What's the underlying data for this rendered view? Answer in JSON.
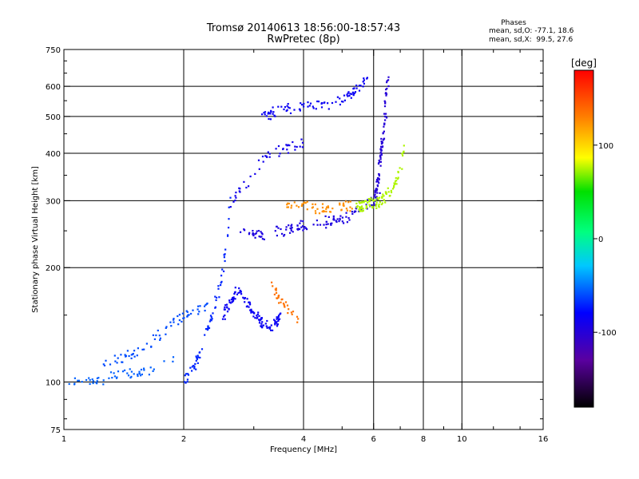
{
  "chart_data": {
    "type": "scatter",
    "title": "Tromsø 20140613 18:56:00-18:57:43",
    "subtitle": "RwPretec (8p)",
    "xlabel": "Frequency [MHz]",
    "ylabel": "Stationary phase Virtual Height [km]",
    "x_scale": "log",
    "y_scale": "log",
    "xlim": [
      1,
      16
    ],
    "ylim": [
      75,
      750
    ],
    "x_ticks": [
      1,
      2,
      4,
      6,
      8,
      10,
      16
    ],
    "x_tick_labels": [
      "1",
      "2",
      "4",
      "6",
      "8",
      "10",
      "16"
    ],
    "y_ticks": [
      75,
      100,
      200,
      300,
      400,
      500,
      600,
      750
    ],
    "y_tick_labels": [
      "75",
      "100",
      "200",
      "300",
      "400",
      "500",
      "600",
      "750"
    ],
    "grid": true,
    "phase_info": {
      "header": "Phases",
      "line_o": "mean, sd,O: -77.1, 18.6",
      "line_x": "mean, sd,X:  99.5, 27.6"
    },
    "colorbar": {
      "label": "[deg]",
      "range": [
        -180,
        180
      ],
      "ticks": [
        100,
        0,
        -100
      ],
      "tick_labels": [
        "100",
        "0",
        "-100"
      ]
    },
    "series": [
      {
        "x_range": [
          1.0,
          1.9
        ],
        "y_start": 100,
        "y_end": 118,
        "phase": -55,
        "count": 55,
        "points": [
          [
            1.0,
            100
          ],
          [
            1.05,
            101
          ],
          [
            1.12,
            102
          ],
          [
            1.2,
            101
          ],
          [
            1.3,
            103
          ],
          [
            1.4,
            105
          ],
          [
            1.5,
            106
          ],
          [
            1.6,
            107
          ],
          [
            1.7,
            110
          ],
          [
            1.8,
            114
          ],
          [
            1.9,
            118
          ]
        ]
      },
      {
        "x_range": [
          1.25,
          2.3
        ],
        "y_start": 112,
        "y_end": 160,
        "phase": -60,
        "count": 70,
        "points": [
          [
            1.25,
            112
          ],
          [
            1.4,
            117
          ],
          [
            1.55,
            122
          ],
          [
            1.7,
            132
          ],
          [
            1.9,
            145
          ],
          [
            2.05,
            152
          ],
          [
            2.2,
            158
          ],
          [
            2.3,
            160
          ]
        ]
      },
      {
        "x_range": [
          2.0,
          2.6
        ],
        "y_start": 100,
        "y_end": 310,
        "phase": -70,
        "count": 70,
        "points": [
          [
            2.0,
            100
          ],
          [
            2.15,
            115
          ],
          [
            2.3,
            140
          ],
          [
            2.45,
            180
          ],
          [
            2.55,
            230
          ],
          [
            2.6,
            310
          ]
        ]
      },
      {
        "x_range": [
          2.4,
          3.5
        ],
        "y_start": 135,
        "y_end": 215,
        "phase": -85,
        "count": 120,
        "points": [
          [
            2.5,
            150
          ],
          [
            2.7,
            175
          ],
          [
            2.9,
            160
          ],
          [
            3.1,
            145
          ],
          [
            3.3,
            140
          ],
          [
            3.5,
            150
          ]
        ]
      },
      {
        "x_range": [
          2.7,
          6.2
        ],
        "y_start": 245,
        "y_end": 310,
        "phase": -95,
        "count": 120,
        "points": [
          [
            2.7,
            250
          ],
          [
            3.0,
            245
          ],
          [
            3.5,
            250
          ],
          [
            4.0,
            260
          ],
          [
            4.5,
            265
          ],
          [
            5.0,
            272
          ],
          [
            5.5,
            285
          ],
          [
            5.9,
            300
          ],
          [
            6.2,
            312
          ]
        ]
      },
      {
        "x_range": [
          6.0,
          6.5
        ],
        "y_start": 300,
        "y_end": 650,
        "phase": -100,
        "count": 90,
        "points": [
          [
            6.0,
            300
          ],
          [
            6.1,
            330
          ],
          [
            6.2,
            380
          ],
          [
            6.3,
            440
          ],
          [
            6.4,
            520
          ],
          [
            6.5,
            650
          ]
        ]
      },
      {
        "x_range": [
          2.6,
          4.2
        ],
        "y_start": 300,
        "y_end": 460,
        "phase": -90,
        "count": 45,
        "points": [
          [
            2.6,
            300
          ],
          [
            2.9,
            340
          ],
          [
            3.1,
            380
          ],
          [
            3.3,
            400
          ],
          [
            3.6,
            410
          ],
          [
            4.0,
            430
          ]
        ]
      },
      {
        "x_range": [
          3.1,
          5.8
        ],
        "y_start": 500,
        "y_end": 660,
        "phase": -85,
        "count": 90,
        "points": [
          [
            3.1,
            500
          ],
          [
            3.5,
            520
          ],
          [
            4.0,
            535
          ],
          [
            4.6,
            540
          ],
          [
            5.2,
            570
          ],
          [
            5.6,
            610
          ],
          [
            5.8,
            650
          ]
        ]
      },
      {
        "x_range": [
          3.6,
          5.4
        ],
        "y_start": 282,
        "y_end": 300,
        "phase": 125,
        "count": 55,
        "points": [
          [
            3.6,
            296
          ],
          [
            4.0,
            290
          ],
          [
            4.4,
            287
          ],
          [
            4.9,
            290
          ],
          [
            5.3,
            292
          ]
        ]
      },
      {
        "x_range": [
          3.3,
          3.85
        ],
        "y_start": 145,
        "y_end": 185,
        "phase": 135,
        "count": 30,
        "points": [
          [
            3.3,
            185
          ],
          [
            3.4,
            170
          ],
          [
            3.55,
            160
          ],
          [
            3.7,
            152
          ],
          [
            3.85,
            147
          ]
        ]
      },
      {
        "x_range": [
          5.4,
          7.2
        ],
        "y_start": 285,
        "y_end": 480,
        "phase": 75,
        "count": 95,
        "points": [
          [
            5.4,
            288
          ],
          [
            5.8,
            295
          ],
          [
            6.2,
            300
          ],
          [
            6.6,
            320
          ],
          [
            6.9,
            350
          ],
          [
            7.1,
            400
          ],
          [
            7.2,
            470
          ]
        ]
      }
    ]
  }
}
